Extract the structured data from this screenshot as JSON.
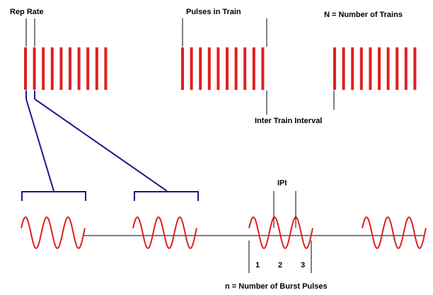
{
  "labels": {
    "rep_rate": "Rep Rate",
    "pulses_in_train": "Pulses in Train",
    "number_of_trains": "N = Number of Trains",
    "inter_train_interval": "Inter Train Interval",
    "ipi": "IPI",
    "pulse_1": "1",
    "pulse_2": "2",
    "pulse_3": "3",
    "burst_pulses": "n = Number of Burst Pulses"
  }
}
